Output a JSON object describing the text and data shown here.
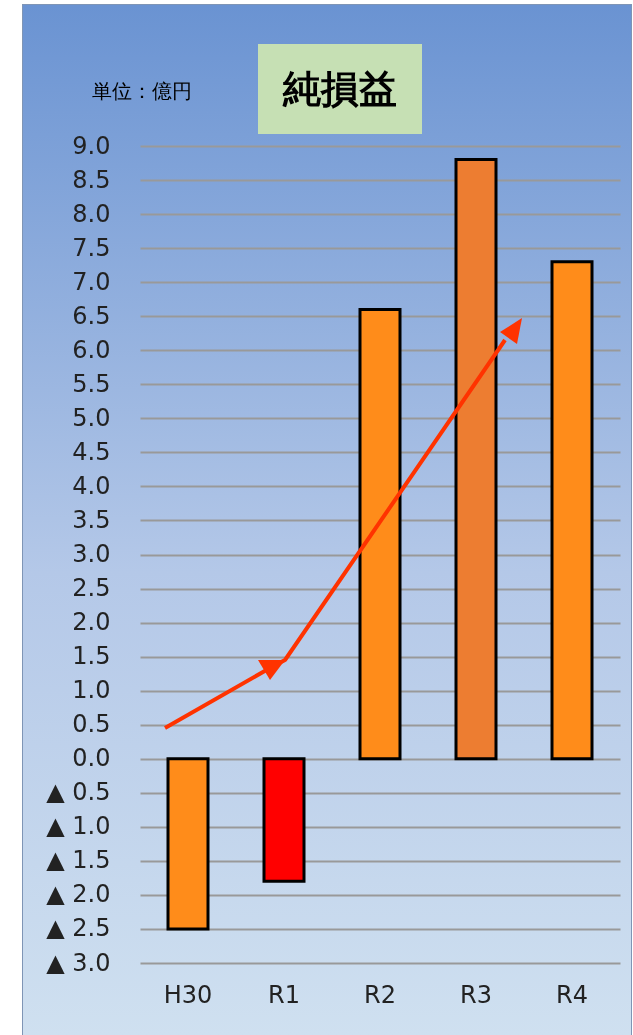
{
  "chart_data": {
    "type": "bar",
    "title": "純損益",
    "annotations": [
      "単位：億円"
    ],
    "categories": [
      "H30",
      "R1",
      "R2",
      "R3",
      "R4"
    ],
    "values": [
      -2.5,
      -1.8,
      6.6,
      8.8,
      7.3
    ],
    "colors": [
      "#ff8c1a",
      "#ff0000",
      "#ff8c1a",
      "#ed7d31",
      "#ff8c1a"
    ],
    "ylim": [
      -3,
      9
    ],
    "yticks": [
      {
        "value": -3,
        "label": "▲ 3.0"
      },
      {
        "value": -2.5,
        "label": "▲ 2.5"
      },
      {
        "value": -2,
        "label": "▲ 2.0"
      },
      {
        "value": -1.5,
        "label": "▲ 1.5"
      },
      {
        "value": -1,
        "label": "▲ 1.0"
      },
      {
        "value": -0.5,
        "label": "▲ 0.5"
      },
      {
        "value": 0,
        "label": "0.0"
      },
      {
        "value": 0.5,
        "label": "0.5"
      },
      {
        "value": 1,
        "label": "1.0"
      },
      {
        "value": 1.5,
        "label": "1.5"
      },
      {
        "value": 2,
        "label": "2.0"
      },
      {
        "value": 2.5,
        "label": "2.5"
      },
      {
        "value": 3,
        "label": "3.0"
      },
      {
        "value": 3.5,
        "label": "3.5"
      },
      {
        "value": 4,
        "label": "4.0"
      },
      {
        "value": 4.5,
        "label": "4.5"
      },
      {
        "value": 5,
        "label": "5.0"
      },
      {
        "value": 5.5,
        "label": "5.5"
      },
      {
        "value": 6,
        "label": "6.0"
      },
      {
        "value": 6.5,
        "label": "6.5"
      },
      {
        "value": 7,
        "label": "7.0"
      },
      {
        "value": 7.5,
        "label": "7.5"
      },
      {
        "value": 8,
        "label": "8.0"
      },
      {
        "value": 8.5,
        "label": "8.5"
      },
      {
        "value": 9,
        "label": "9.0"
      }
    ],
    "grid": "y"
  }
}
